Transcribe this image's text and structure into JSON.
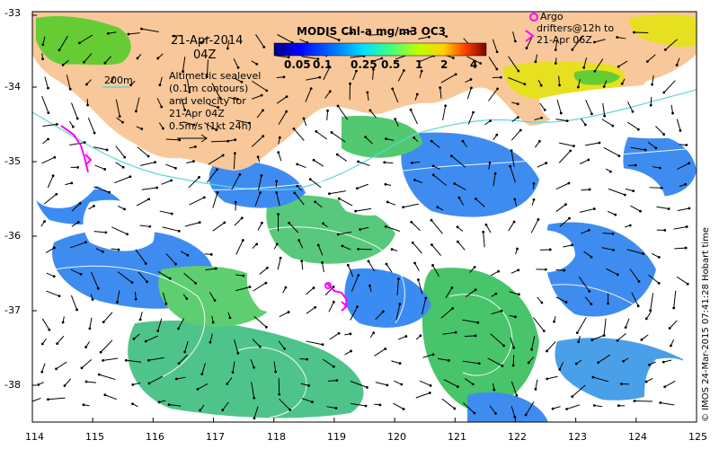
{
  "map": {
    "date": "21-Apr-2014",
    "time": "04Z",
    "colorbar_title": "MODIS Chl-a mg/m3 OC3",
    "colorbar_ticks": [
      "0.05",
      "0.1",
      "0.25",
      "0.5",
      "1",
      "2",
      "4"
    ],
    "colors": {
      "land": "#f8c89a",
      "ocean_low": "#4a8ff5",
      "ocean_mid": "#30c0b0",
      "ocean_high": "#50c850",
      "coastal_high": "#e0e020",
      "argo": "#ff00ff",
      "contour": "#ffffff",
      "isobath": "#5fd7d7"
    },
    "isobath_label": "200m",
    "altimetry_lines": [
      "Altimetric sealevel",
      "(0.1m contours)",
      "and velocity for",
      "21-Apr 04Z"
    ],
    "velocity_scale": "0.5m/s (1kt 24h)",
    "argo_lines": [
      "Argo",
      "drifters@12h to",
      "21-Apr 06Z"
    ],
    "credit": "© IMOS 24-Mar-2015 07:41:28 Hobart time",
    "lon_ticks": [
      "114",
      "115",
      "116",
      "117",
      "118",
      "119",
      "120",
      "121",
      "122",
      "123",
      "124",
      "125"
    ],
    "lat_ticks": [
      "-33",
      "-34",
      "-35",
      "-36",
      "-37",
      "-38"
    ]
  }
}
